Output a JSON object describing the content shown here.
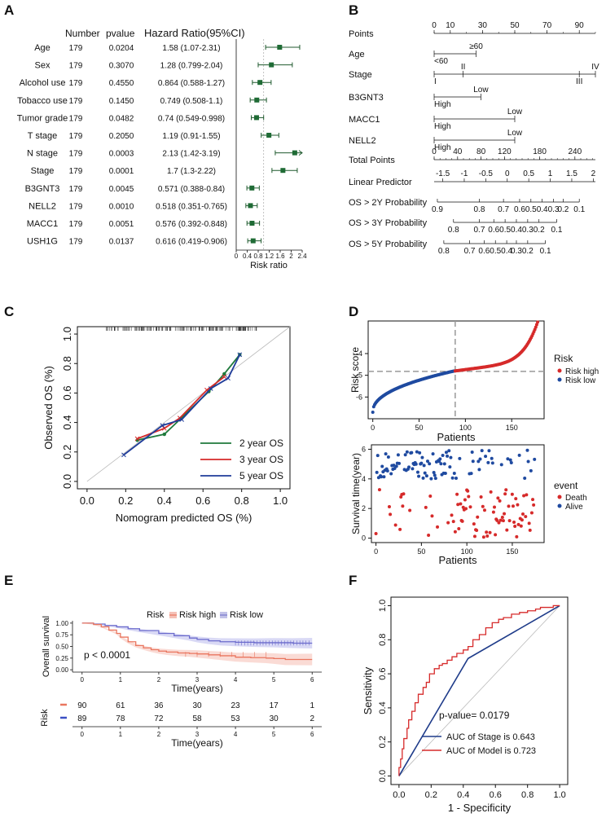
{
  "panels": {
    "A": "A",
    "B": "B",
    "C": "C",
    "D": "D",
    "E": "E",
    "F": "F"
  },
  "chart_data": [
    {
      "panel": "A",
      "type": "forest",
      "headers": {
        "variable": "",
        "number": "Number",
        "pvalue": "pvalue",
        "hr": "Hazard Ratio(95%CI)"
      },
      "xlabel": "Risk ratio",
      "xticks": [
        "0",
        "0.4",
        "0.8",
        "1.2",
        "1.6",
        "2",
        "2.4"
      ],
      "xlim": [
        0,
        2.4
      ],
      "rows": [
        {
          "name": "Age",
          "n": "179",
          "p": "0.0204",
          "hr_text": "1.58 (1.07-2.31)",
          "hr": 1.58,
          "lo": 1.07,
          "hi": 2.31
        },
        {
          "name": "Sex",
          "n": "179",
          "p": "0.3070",
          "hr_text": "1.28 (0.799-2.04)",
          "hr": 1.28,
          "lo": 0.799,
          "hi": 2.04
        },
        {
          "name": "Alcohol use",
          "n": "179",
          "p": "0.4550",
          "hr_text": "0.864 (0.588-1.27)",
          "hr": 0.864,
          "lo": 0.588,
          "hi": 1.27
        },
        {
          "name": "Tobacco use",
          "n": "179",
          "p": "0.1450",
          "hr_text": "0.749 (0.508-1.1)",
          "hr": 0.749,
          "lo": 0.508,
          "hi": 1.1
        },
        {
          "name": "Tumor grade",
          "n": "179",
          "p": "0.0482",
          "hr_text": "0.74 (0.549-0.998)",
          "hr": 0.74,
          "lo": 0.549,
          "hi": 0.998
        },
        {
          "name": "T stage",
          "n": "179",
          "p": "0.2050",
          "hr_text": "1.19 (0.91-1.55)",
          "hr": 1.19,
          "lo": 0.91,
          "hi": 1.55
        },
        {
          "name": "N stage",
          "n": "179",
          "p": "0.0003",
          "hr_text": "2.13 (1.42-3.19)",
          "hr": 2.13,
          "lo": 1.42,
          "hi": 3.19
        },
        {
          "name": "Stage",
          "n": "179",
          "p": "0.0001",
          "hr_text": "1.7 (1.3-2.22)",
          "hr": 1.7,
          "lo": 1.3,
          "hi": 2.22
        },
        {
          "name": "B3GNT3",
          "n": "179",
          "p": "0.0045",
          "hr_text": "0.571 (0.388-0.84)",
          "hr": 0.571,
          "lo": 0.388,
          "hi": 0.84
        },
        {
          "name": "NELL2",
          "n": "179",
          "p": "0.0010",
          "hr_text": "0.518 (0.351-0.765)",
          "hr": 0.518,
          "lo": 0.351,
          "hi": 0.765
        },
        {
          "name": "MACC1",
          "n": "179",
          "p": "0.0051",
          "hr_text": "0.576 (0.392-0.848)",
          "hr": 0.576,
          "lo": 0.392,
          "hi": 0.848
        },
        {
          "name": "USH1G",
          "n": "179",
          "p": "0.0137",
          "hr_text": "0.616 (0.419-0.906)",
          "hr": 0.616,
          "lo": 0.419,
          "hi": 0.906
        }
      ]
    },
    {
      "panel": "B",
      "type": "nomogram",
      "rows": [
        {
          "label": "Points",
          "scale": [
            0,
            100
          ],
          "ticks": [
            0,
            10,
            30,
            50,
            70,
            90
          ],
          "tick_labels": [
            "0",
            "10",
            "30",
            "50",
            "70",
            "90"
          ],
          "minor": 10
        },
        {
          "label": "Age",
          "cats": [
            {
              "t": "<60",
              "v": 0,
              "pos": "below"
            },
            {
              "t": "≥60",
              "v": 26,
              "pos": "above"
            }
          ]
        },
        {
          "label": "Stage",
          "cats": [
            {
              "t": "I",
              "v": 0,
              "pos": "below"
            },
            {
              "t": "II",
              "v": 18,
              "pos": "above"
            },
            {
              "t": "III",
              "v": 90,
              "pos": "below"
            },
            {
              "t": "IV",
              "v": 100,
              "pos": "above"
            }
          ]
        },
        {
          "label": "B3GNT3",
          "cats": [
            {
              "t": "High",
              "v": 0,
              "pos": "below"
            },
            {
              "t": "Low",
              "v": 29,
              "pos": "above"
            }
          ]
        },
        {
          "label": "MACC1",
          "cats": [
            {
              "t": "High",
              "v": 0,
              "pos": "below"
            },
            {
              "t": "Low",
              "v": 50,
              "pos": "above"
            }
          ]
        },
        {
          "label": "NELL2",
          "cats": [
            {
              "t": "High",
              "v": 0,
              "pos": "below"
            },
            {
              "t": "Low",
              "v": 50,
              "pos": "above"
            }
          ]
        },
        {
          "label": "Total Points",
          "scale": [
            0,
            275
          ],
          "ticks": [
            0,
            40,
            80,
            120,
            180,
            240
          ],
          "tick_labels": [
            "0",
            "40",
            "80",
            "120",
            "180",
            "240"
          ],
          "minor": 10
        },
        {
          "label": "Linear Predictor",
          "scale": [
            -1.7,
            2.05
          ],
          "ticks": [
            -1.5,
            -1,
            -0.5,
            0,
            0.5,
            1,
            1.5,
            2
          ],
          "tick_labels": [
            "-1.5",
            "-1",
            "-0.5",
            "0",
            "0.5",
            "1",
            "1.5",
            "2"
          ]
        },
        {
          "label": "OS > 2Y Probability",
          "probs": [
            "0.9",
            "0.8",
            "0.7",
            "0.6",
            "0.5",
            "0.4",
            "0.3",
            "0.2",
            "0.1"
          ],
          "pts": [
            2,
            28,
            43,
            53,
            60,
            67,
            74,
            80,
            90
          ]
        },
        {
          "label": "OS > 3Y Probability",
          "probs": [
            "0.8",
            "0.7",
            "0.6",
            "0.5",
            "0.4",
            "0.3",
            "0.2",
            "0.1"
          ],
          "pts": [
            12,
            28,
            37,
            44,
            51,
            58,
            65,
            76
          ]
        },
        {
          "label": "OS > 5Y Probability",
          "probs": [
            "0.8",
            "0.7",
            "0.6",
            "0.5",
            "0.4",
            "0.3",
            "0.2",
            "0.1"
          ],
          "pts": [
            6,
            22,
            31,
            38,
            45,
            51,
            58,
            69
          ]
        }
      ]
    },
    {
      "panel": "C",
      "type": "calibration",
      "xlabel": "Nomogram predicted OS (%)",
      "ylabel": "Observed OS (%)",
      "xlim": [
        0,
        1
      ],
      "ylim": [
        0,
        1
      ],
      "ticks": [
        "0.0",
        "0.2",
        "0.4",
        "0.6",
        "0.8",
        "1.0"
      ],
      "series": [
        {
          "name": "2 year OS",
          "color": "#1f7a3c",
          "x": [
            0.26,
            0.4,
            0.48,
            0.63,
            0.71,
            0.79
          ],
          "y": [
            0.28,
            0.32,
            0.42,
            0.61,
            0.73,
            0.86
          ]
        },
        {
          "name": "3 year OS",
          "color": "#d62a2a",
          "x": [
            0.26,
            0.4,
            0.48,
            0.62,
            0.71
          ],
          "y": [
            0.29,
            0.36,
            0.43,
            0.62,
            0.71
          ]
        },
        {
          "name": "5 year OS",
          "color": "#1f3c9a",
          "x": [
            0.19,
            0.39,
            0.49,
            0.64,
            0.73,
            0.79
          ],
          "y": [
            0.18,
            0.38,
            0.42,
            0.63,
            0.7,
            0.86
          ]
        }
      ]
    },
    {
      "panel": "D-top",
      "type": "scatter",
      "xlabel": "Patients",
      "ylabel": "Risk score",
      "xlim": [
        -5,
        185
      ],
      "ylim": [
        -7,
        -2.5
      ],
      "xticks": [
        "0",
        "50",
        "100",
        "150"
      ],
      "yticks": [
        "-6",
        "-5",
        "-4"
      ],
      "cutoff_x": 89,
      "cutoff_y": -4.82,
      "legend_title": "Risk",
      "legend": [
        {
          "t": "Risk high",
          "c": "#d62a2a"
        },
        {
          "t": "Risk low",
          "c": "#1f4aa0"
        }
      ],
      "n": 179
    },
    {
      "panel": "D-bottom",
      "type": "scatter",
      "xlabel": "Patients",
      "ylabel": "Survival time(year)",
      "xlim": [
        -5,
        185
      ],
      "ylim": [
        -0.3,
        6.3
      ],
      "xticks": [
        "0",
        "50",
        "100",
        "150"
      ],
      "yticks": [
        "0",
        "2",
        "4",
        "6"
      ],
      "legend_title": "event",
      "legend": [
        {
          "t": "Death",
          "c": "#d62a2a"
        },
        {
          "t": "Alive",
          "c": "#1f4aa0"
        }
      ]
    },
    {
      "panel": "E",
      "type": "km",
      "legend_title": "Risk",
      "legend": [
        {
          "t": "Risk high",
          "c": "#e9765f"
        },
        {
          "t": "Risk low",
          "c": "#7777cc"
        }
      ],
      "ylabel": "Overall survival",
      "xlabel": "Time(years)",
      "pvalue": "p < 0.0001",
      "xticks": [
        "0",
        "1",
        "2",
        "3",
        "4",
        "5",
        "6"
      ],
      "yticks": [
        "0.00",
        "0.25",
        "0.50",
        "0.75",
        "1.00"
      ],
      "xlim": [
        0,
        6
      ],
      "ylim": [
        0,
        1
      ],
      "high": {
        "t": [
          0,
          0.3,
          0.5,
          0.7,
          0.9,
          1.0,
          1.2,
          1.4,
          1.6,
          1.8,
          2.0,
          2.2,
          2.5,
          2.8,
          3.0,
          3.3,
          3.6,
          4.0,
          4.4,
          4.8,
          5.0,
          5.3,
          6.0
        ],
        "s": [
          1,
          0.97,
          0.92,
          0.85,
          0.78,
          0.7,
          0.6,
          0.52,
          0.47,
          0.43,
          0.4,
          0.38,
          0.36,
          0.35,
          0.34,
          0.32,
          0.3,
          0.27,
          0.26,
          0.25,
          0.24,
          0.22,
          0.22
        ]
      },
      "low": {
        "t": [
          0,
          0.3,
          0.6,
          0.9,
          1.2,
          1.5,
          2.0,
          2.4,
          2.8,
          3.0,
          3.3,
          3.6,
          4.0,
          4.5,
          5.0,
          5.5,
          6.0
        ],
        "s": [
          1,
          0.98,
          0.95,
          0.92,
          0.88,
          0.84,
          0.78,
          0.73,
          0.68,
          0.65,
          0.62,
          0.6,
          0.59,
          0.58,
          0.58,
          0.57,
          0.57
        ]
      },
      "risk_table": {
        "title": "Risk",
        "xlabel": "Time(years)",
        "rows": [
          {
            "color": "#e9765f",
            "counts": [
              "90",
              "61",
              "36",
              "30",
              "23",
              "17",
              "1"
            ]
          },
          {
            "color": "#3b4fc4",
            "counts": [
              "89",
              "78",
              "72",
              "58",
              "53",
              "30",
              "2"
            ]
          }
        ]
      }
    },
    {
      "panel": "F",
      "type": "roc",
      "xlabel": "1 - Specificity",
      "ylabel": "Sensitivity",
      "ticks": [
        "0.0",
        "0.2",
        "0.4",
        "0.6",
        "0.8",
        "1.0"
      ],
      "annotation": "p-value= 0.0179",
      "legend": [
        {
          "t": "AUC of Stage is 0.643",
          "c": "#1f3c8a"
        },
        {
          "t": "AUC of Model is 0.723",
          "c": "#d62a2a"
        }
      ],
      "stage": {
        "x": [
          0,
          0.43,
          1.0
        ],
        "y": [
          0,
          0.69,
          1.0
        ]
      },
      "model": {
        "x": [
          0,
          0.01,
          0.02,
          0.03,
          0.05,
          0.06,
          0.08,
          0.1,
          0.12,
          0.15,
          0.17,
          0.19,
          0.22,
          0.25,
          0.27,
          0.3,
          0.33,
          0.36,
          0.4,
          0.43,
          0.46,
          0.5,
          0.54,
          0.58,
          0.62,
          0.65,
          0.7,
          0.75,
          0.8,
          0.85,
          0.88,
          0.92,
          0.96,
          1.0
        ],
        "y": [
          0,
          0.05,
          0.1,
          0.16,
          0.22,
          0.28,
          0.33,
          0.38,
          0.43,
          0.48,
          0.52,
          0.55,
          0.6,
          0.63,
          0.65,
          0.66,
          0.68,
          0.7,
          0.72,
          0.74,
          0.76,
          0.8,
          0.83,
          0.87,
          0.9,
          0.92,
          0.93,
          0.95,
          0.96,
          0.97,
          0.98,
          0.99,
          0.99,
          1.0
        ]
      }
    }
  ]
}
